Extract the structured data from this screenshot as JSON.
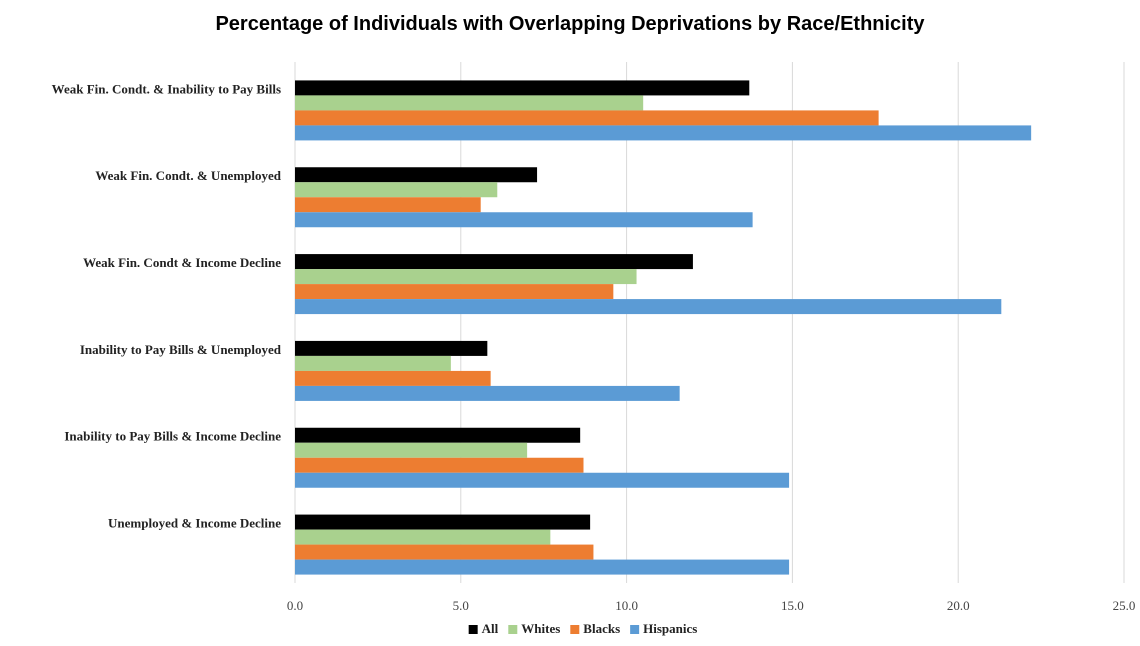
{
  "chart_data": {
    "type": "bar",
    "orientation": "horizontal",
    "title": "Percentage of Individuals with Overlapping Deprivations by Race/Ethnicity",
    "xlabel": "",
    "ylabel": "",
    "xlim": [
      0,
      25
    ],
    "x_ticks": [
      "0.0",
      "5.0",
      "10.0",
      "15.0",
      "20.0",
      "25.0"
    ],
    "grid": true,
    "legend_position": "bottom",
    "categories": [
      "Weak Fin. Condt. & Inability to Pay Bills",
      "Weak Fin. Condt. & Unemployed",
      "Weak Fin. Condt & Income Decline",
      "Inability to Pay Bills & Unemployed",
      "Inability to Pay Bills & Income Decline",
      "Unemployed & Income Decline"
    ],
    "series": [
      {
        "name": "All",
        "color": "#000000",
        "values": [
          13.7,
          7.3,
          12.0,
          5.8,
          8.6,
          8.9
        ]
      },
      {
        "name": "Whites",
        "color": "#a9d18e",
        "values": [
          10.5,
          6.1,
          10.3,
          4.7,
          7.0,
          7.7
        ]
      },
      {
        "name": "Blacks",
        "color": "#ed7d31",
        "values": [
          17.6,
          5.6,
          9.6,
          5.9,
          8.7,
          9.0
        ]
      },
      {
        "name": "Hispanics",
        "color": "#5b9bd5",
        "values": [
          22.2,
          13.8,
          21.3,
          11.6,
          14.9,
          14.9
        ]
      }
    ]
  }
}
